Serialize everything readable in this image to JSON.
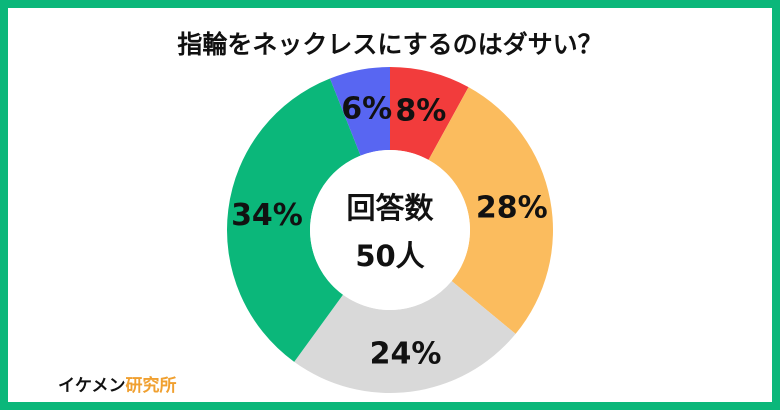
{
  "chart_data": {
    "type": "donut",
    "title": "指輪をネックレスにするのはダサい？",
    "values": [
      8,
      28,
      24,
      34,
      6
    ],
    "value_labels": [
      "8%",
      "28%",
      "24%",
      "34%",
      "6%"
    ],
    "colors": [
      "#f23c3c",
      "#fbbc5e",
      "#d9d9d9",
      "#0bb77a",
      "#5866f2"
    ],
    "center_label": [
      "回答数",
      "50人"
    ]
  },
  "footer": {
    "brand": "イケメン",
    "brand_accent": "研究所"
  }
}
